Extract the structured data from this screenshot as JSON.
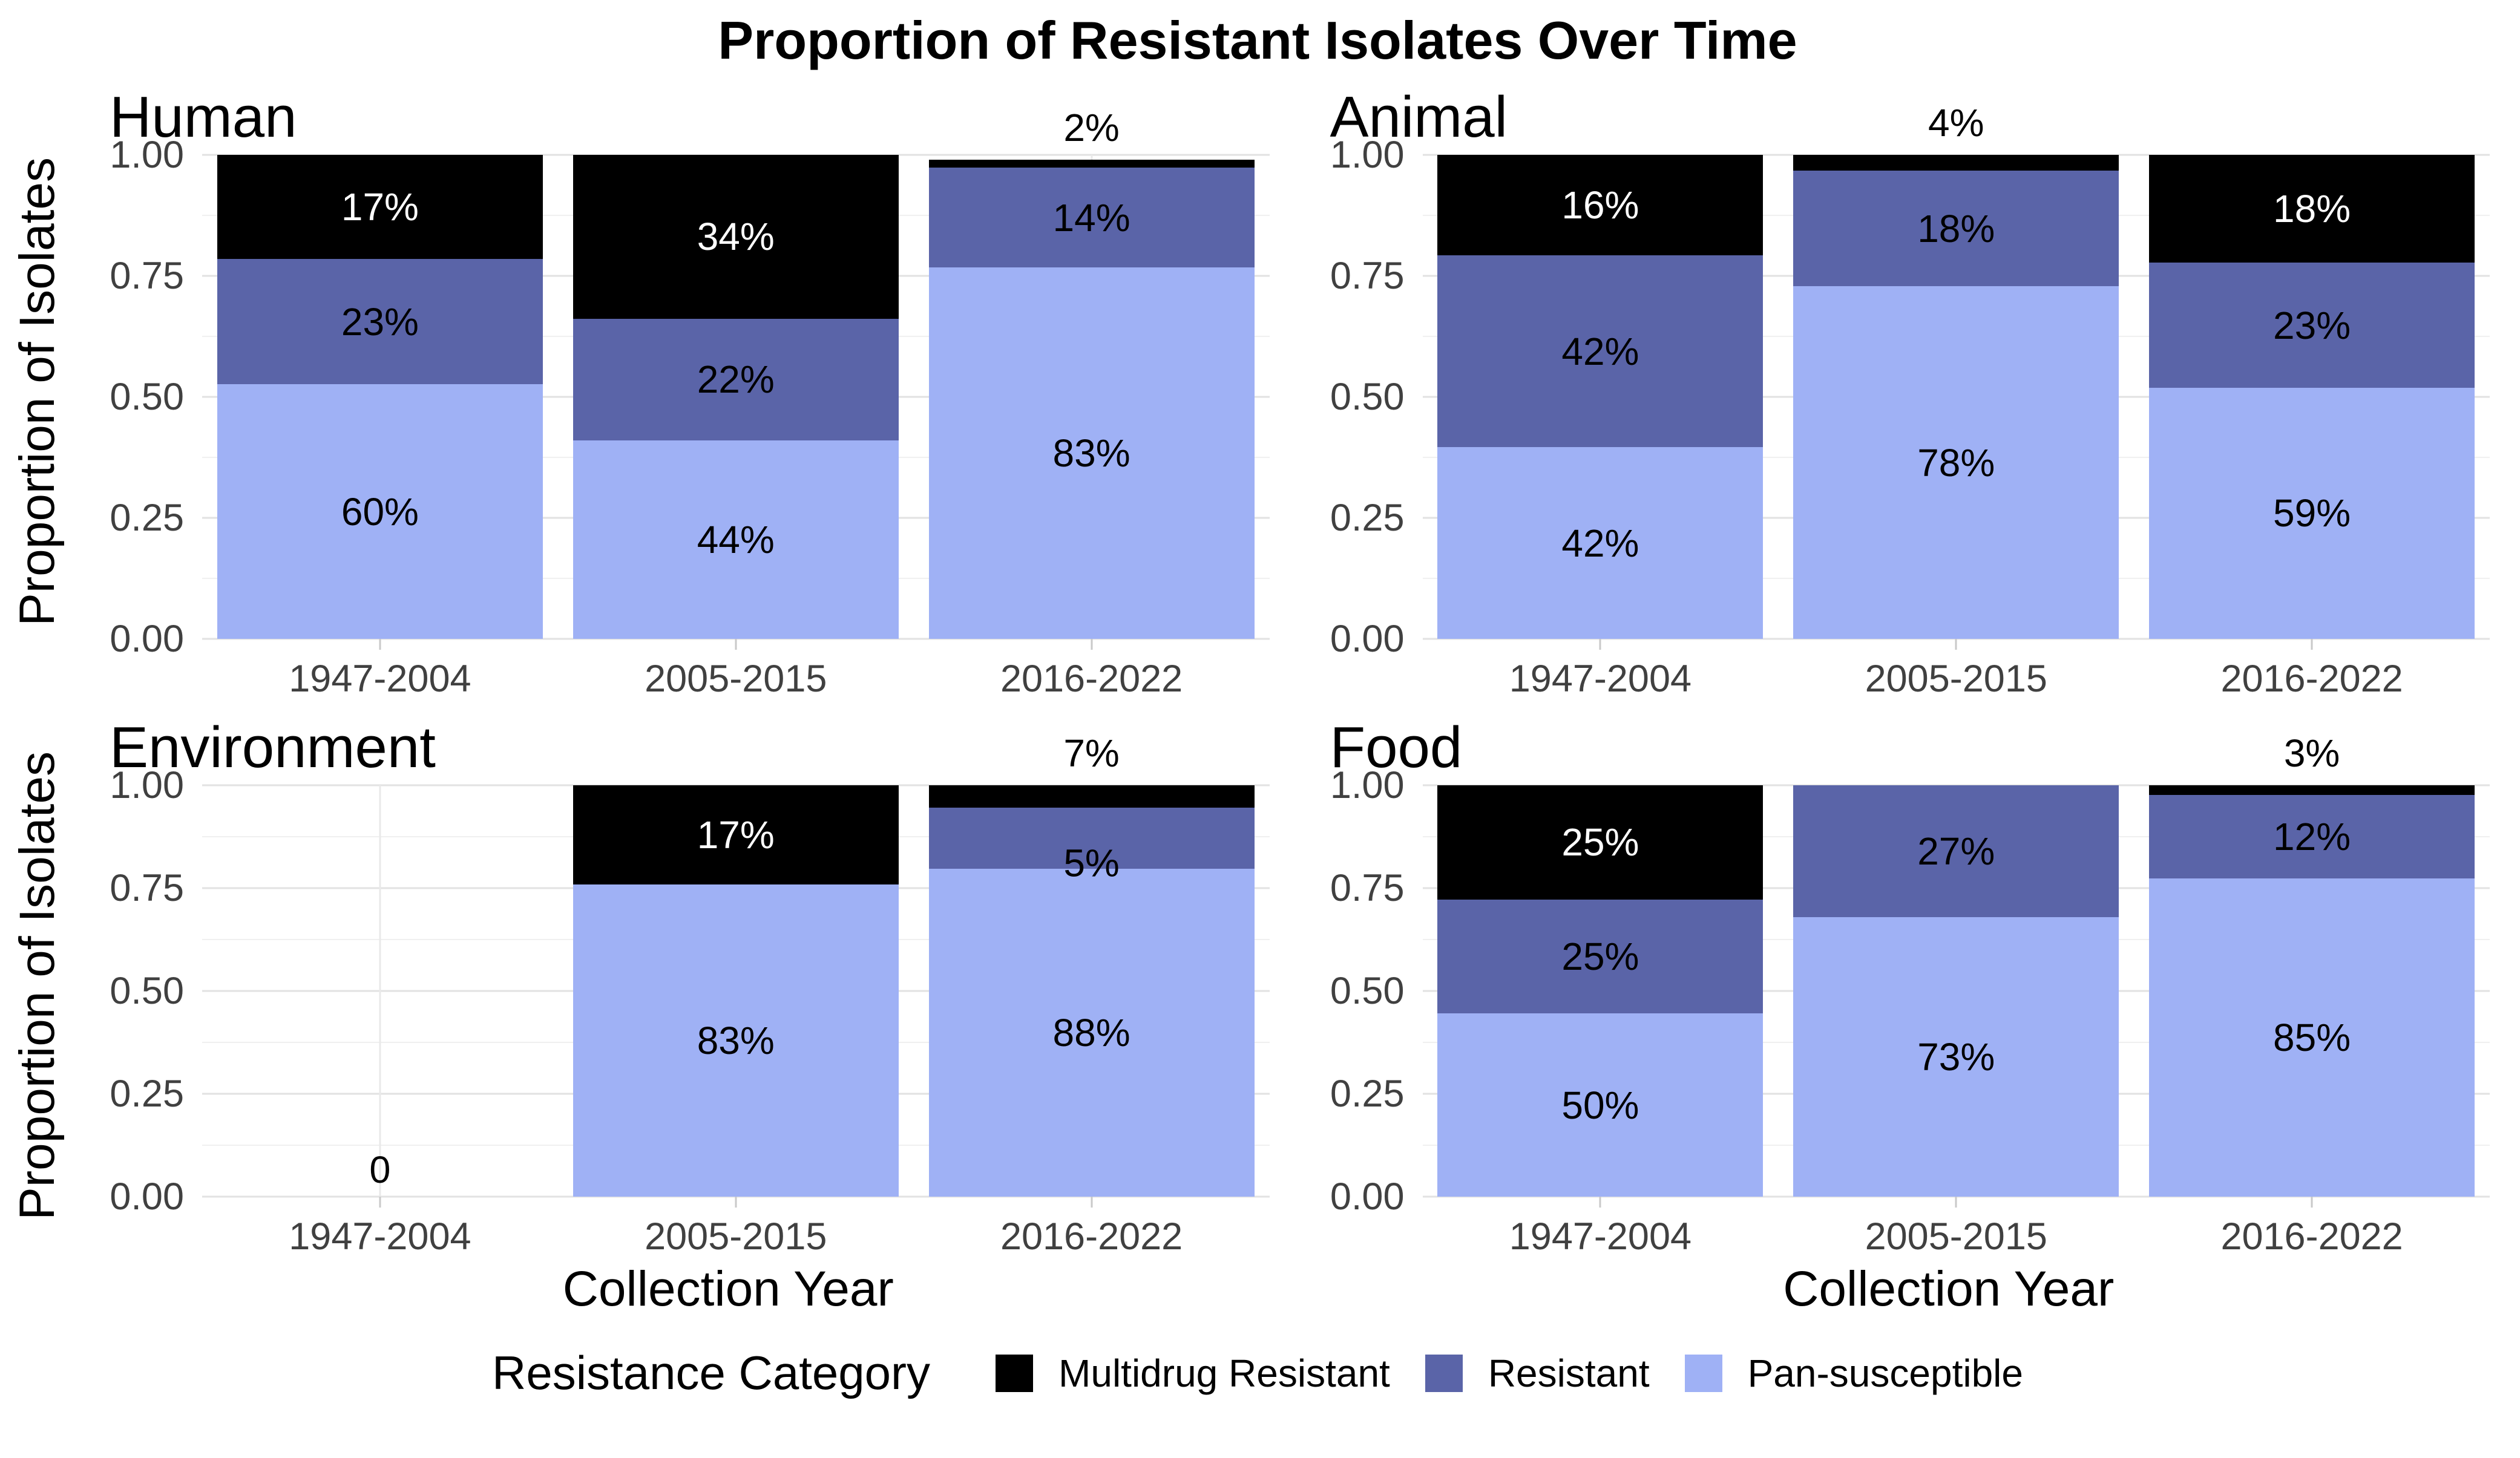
{
  "title": "Proportion of Resistant Isolates Over Time",
  "y_axis": {
    "label": "Proportion of Isolates",
    "tick_labels": [
      "1.00",
      "0.75",
      "0.50",
      "0.25",
      "0.00"
    ]
  },
  "x_axis": {
    "label": "Collection Year",
    "tick_labels": [
      "1947-2004",
      "2005-2015",
      "2016-2022"
    ]
  },
  "legend": {
    "title": "Resistance Category",
    "items": [
      {
        "label": "Multidrug Resistant",
        "color": "#000000"
      },
      {
        "label": "Resistant",
        "color": "#5A64A8"
      },
      {
        "label": "Pan-susceptible",
        "color": "#9FB1F5"
      }
    ]
  },
  "chart_data": {
    "type": "bar",
    "stacked": true,
    "unit": "percent",
    "grid": true,
    "legend_position": "bottom",
    "categories": [
      "1947-2004",
      "2005-2015",
      "2016-2022"
    ],
    "ylim": [
      0,
      1
    ],
    "yticks": [
      1.0,
      0.75,
      0.5,
      0.25,
      0.0
    ],
    "ylabel": "Proportion of Isolates",
    "xlabel": "Collection Year",
    "title": "Proportion of Resistant Isolates Over Time",
    "series_names": [
      "Multidrug Resistant",
      "Resistant",
      "Pan-susceptible"
    ],
    "series_colors": {
      "Multidrug Resistant": "#000000",
      "Resistant": "#5A64A8",
      "Pan-susceptible": "#9FB1F5"
    },
    "label_text_colors": {
      "Multidrug Resistant": "#ffffff",
      "Resistant": "#000000",
      "Pan-susceptible": "#000000"
    },
    "facets": [
      {
        "name": "Human",
        "series": [
          {
            "name": "Multidrug Resistant",
            "values": [
              17,
              34,
              2
            ]
          },
          {
            "name": "Resistant",
            "values": [
              23,
              22,
              14
            ]
          },
          {
            "name": "Pan-susceptible",
            "values": [
              60,
              44,
              83
            ]
          }
        ]
      },
      {
        "name": "Animal",
        "series": [
          {
            "name": "Multidrug Resistant",
            "values": [
              16,
              4,
              18
            ]
          },
          {
            "name": "Resistant",
            "values": [
              42,
              18,
              23
            ]
          },
          {
            "name": "Pan-susceptible",
            "values": [
              42,
              78,
              59
            ]
          }
        ]
      },
      {
        "name": "Environment",
        "series": [
          {
            "name": "Multidrug Resistant",
            "values": [
              0,
              17,
              7
            ]
          },
          {
            "name": "Resistant",
            "values": [
              0,
              0,
              5
            ]
          },
          {
            "name": "Pan-susceptible",
            "values": [
              0,
              83,
              88
            ]
          }
        ],
        "annotations": [
          {
            "category": "1947-2004",
            "text": "0"
          }
        ]
      },
      {
        "name": "Food",
        "series": [
          {
            "name": "Multidrug Resistant",
            "values": [
              25,
              0,
              3
            ]
          },
          {
            "name": "Resistant",
            "values": [
              25,
              27,
              12
            ]
          },
          {
            "name": "Pan-susceptible",
            "values": [
              50,
              73,
              85
            ]
          }
        ]
      }
    ]
  }
}
